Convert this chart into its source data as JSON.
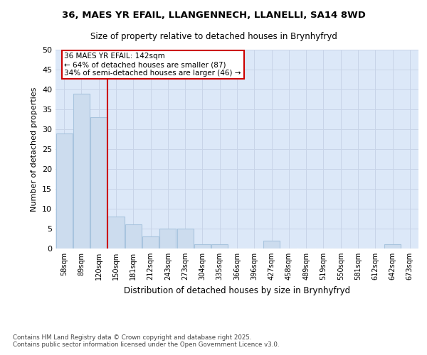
{
  "title_line1": "36, MAES YR EFAIL, LLANGENNECH, LLANELLI, SA14 8WD",
  "title_line2": "Size of property relative to detached houses in Brynhyfryd",
  "xlabel": "Distribution of detached houses by size in Brynhyfryd",
  "ylabel": "Number of detached properties",
  "categories": [
    "58sqm",
    "89sqm",
    "120sqm",
    "150sqm",
    "181sqm",
    "212sqm",
    "243sqm",
    "273sqm",
    "304sqm",
    "335sqm",
    "366sqm",
    "396sqm",
    "427sqm",
    "458sqm",
    "489sqm",
    "519sqm",
    "550sqm",
    "581sqm",
    "612sqm",
    "642sqm",
    "673sqm"
  ],
  "values": [
    29,
    39,
    33,
    8,
    6,
    3,
    5,
    5,
    1,
    1,
    0,
    0,
    2,
    0,
    0,
    0,
    0,
    0,
    0,
    1,
    0
  ],
  "bar_color": "#ccdcee",
  "bar_edge_color": "#a8c4de",
  "grid_color": "#c8d4e8",
  "background_color": "#dce8f8",
  "annotation_text": "36 MAES YR EFAIL: 142sqm\n← 64% of detached houses are smaller (87)\n34% of semi-detached houses are larger (46) →",
  "annotation_box_color": "#ffffff",
  "annotation_box_edge": "#cc0000",
  "ref_line_color": "#cc0000",
  "ref_line_x": 2.5,
  "ylim": [
    0,
    50
  ],
  "yticks": [
    0,
    5,
    10,
    15,
    20,
    25,
    30,
    35,
    40,
    45,
    50
  ],
  "footer_line1": "Contains HM Land Registry data © Crown copyright and database right 2025.",
  "footer_line2": "Contains public sector information licensed under the Open Government Licence v3.0."
}
